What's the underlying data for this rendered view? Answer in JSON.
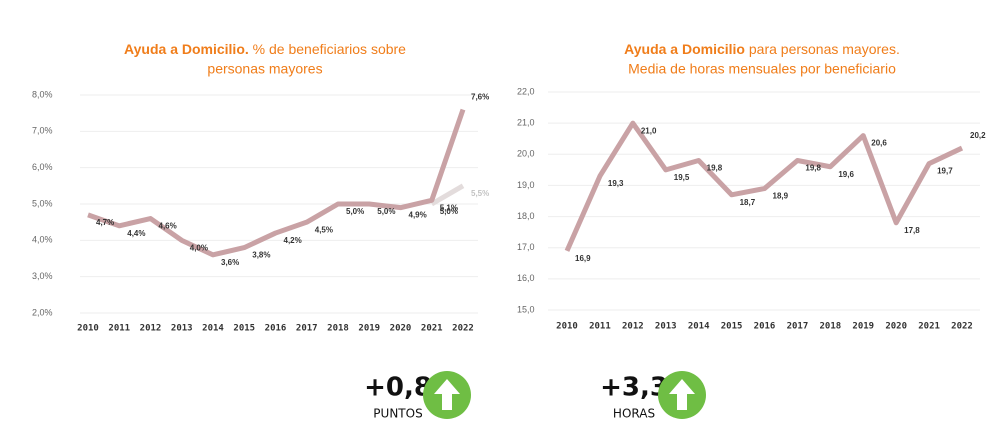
{
  "chart_data": [
    {
      "type": "line",
      "title": [
        "Ayuda a Domicilio.",
        "% de beneficiarios sobre",
        "personas mayores"
      ],
      "categories": [
        "2010",
        "2011",
        "2012",
        "2013",
        "2014",
        "2015",
        "2016",
        "2017",
        "2018",
        "2019",
        "2020",
        "2021",
        "2022"
      ],
      "series": [
        {
          "color": "#c9a2a5",
          "values": [
            4.7,
            4.4,
            4.6,
            4.0,
            3.6,
            3.8,
            4.2,
            4.5,
            5.0,
            5.0,
            4.9,
            5.1,
            7.6
          ],
          "value_labels": [
            "4,7%",
            "4,4%",
            "4,6%",
            "4,0%",
            "3,6%",
            "3,8%",
            "4,2%",
            "4,5%",
            "5,0%",
            "5,0%",
            "4,9%",
            "5,1%",
            "7,6%"
          ]
        },
        {
          "color": "#e3dcdc",
          "values": [
            null,
            null,
            null,
            null,
            null,
            null,
            null,
            null,
            null,
            null,
            null,
            5.0,
            5.5
          ],
          "value_labels": [
            null,
            null,
            null,
            null,
            null,
            null,
            null,
            null,
            null,
            null,
            null,
            "5,0%",
            "5,5%"
          ]
        }
      ],
      "highlight_color": "#e4003a",
      "ylim": [
        2,
        8
      ],
      "yticks": [
        {
          "value": 2,
          "label": "2,0%"
        },
        {
          "value": 3,
          "label": "3,0%"
        },
        {
          "value": 4,
          "label": "4,0%"
        },
        {
          "value": 5,
          "label": "5,0%"
        },
        {
          "value": 6,
          "label": "6,0%"
        },
        {
          "value": 7,
          "label": "7,0%"
        },
        {
          "value": 8,
          "label": "8,0%"
        }
      ],
      "grid": true
    },
    {
      "type": "line",
      "title": [
        "Ayuda a Domicilio",
        "para personas mayores.",
        "Media de horas mensuales por beneficiario"
      ],
      "categories": [
        "2010",
        "2011",
        "2012",
        "2013",
        "2014",
        "2015",
        "2016",
        "2017",
        "2018",
        "2019",
        "2020",
        "2021",
        "2022"
      ],
      "series": [
        {
          "color": "#c9a2a5",
          "values": [
            16.9,
            19.3,
            21.0,
            19.5,
            19.8,
            18.7,
            18.9,
            19.8,
            19.6,
            20.6,
            17.8,
            19.7,
            20.2
          ],
          "value_labels": [
            "16,9",
            "19,3",
            "21,0",
            "19,5",
            "19,8",
            "18,7",
            "18,9",
            "19,8",
            "19,6",
            "20,6",
            "17,8",
            "19,7",
            "20,2"
          ]
        }
      ],
      "highlight_color": "#e4003a",
      "ylim": [
        15,
        22
      ],
      "yticks": [
        {
          "value": 15,
          "label": "15,0"
        },
        {
          "value": 16,
          "label": "16,0"
        },
        {
          "value": 17,
          "label": "17,0"
        },
        {
          "value": 18,
          "label": "18,0"
        },
        {
          "value": 19,
          "label": "19,0"
        },
        {
          "value": 20,
          "label": "20,0"
        },
        {
          "value": 21,
          "label": "21,0"
        },
        {
          "value": 22,
          "label": "22,0"
        }
      ],
      "grid": true
    }
  ],
  "indicators": [
    {
      "value": "+0,8",
      "unit": "PUNTOS"
    },
    {
      "value": "+3,3",
      "unit": "HORAS"
    }
  ]
}
